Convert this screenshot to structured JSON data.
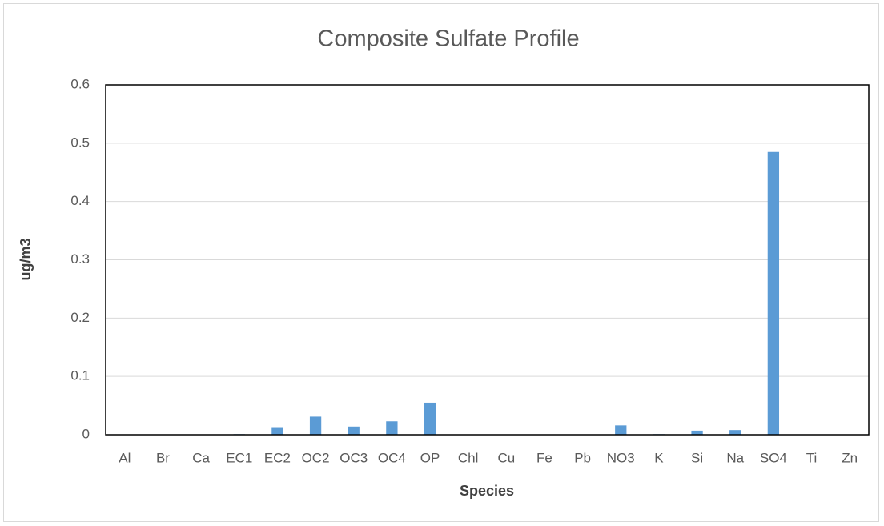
{
  "chart_data": {
    "type": "bar",
    "title": "Composite Sulfate Profile",
    "x_label": "Species",
    "y_label": "ug/m3",
    "categories": [
      "Al",
      "Br",
      "Ca",
      "EC1",
      "EC2",
      "OC2",
      "OC3",
      "OC4",
      "OP",
      "Chl",
      "Cu",
      "Fe",
      "Pb",
      "NO3",
      "K",
      "Si",
      "Na",
      "SO4",
      "Ti",
      "Zn"
    ],
    "values": [
      0,
      0,
      0,
      0.001,
      0.013,
      0.031,
      0.014,
      0.023,
      0.055,
      0,
      0,
      0,
      0,
      0.016,
      0.001,
      0.007,
      0.008,
      0.485,
      0,
      0
    ],
    "color": "#5b9bd5",
    "ylim": [
      0,
      0.6
    ],
    "yticks": [
      0,
      0.1,
      0.2,
      0.3,
      0.4,
      0.5,
      0.6
    ],
    "grid": true
  }
}
